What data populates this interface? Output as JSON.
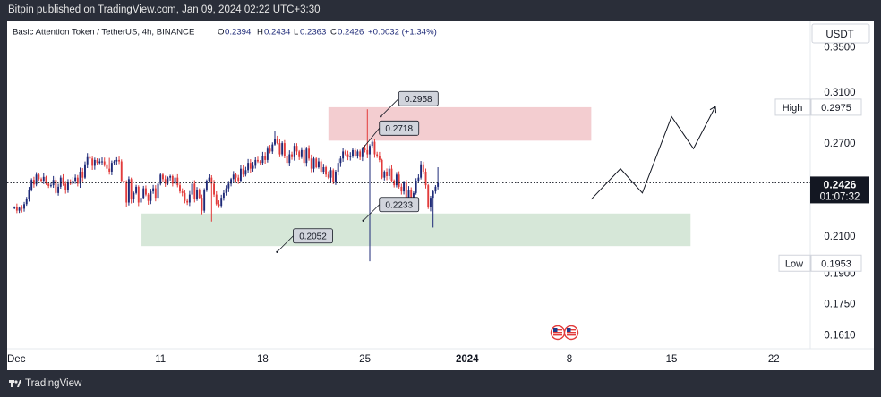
{
  "header": {
    "publisher_line": "Bitpin published on TradingView.com, Jan 09, 2024 02:22 UTC+3:30"
  },
  "legend": {
    "symbol": "Basic Attention Token / TetherUS, 4h, BINANCE",
    "open_label": "O",
    "open": "0.2394",
    "high_label": "H",
    "high": "0.2434",
    "low_label": "L",
    "low": "0.2363",
    "close_label": "C",
    "close": "0.2426",
    "change": "+0.0032 (+1.34%)"
  },
  "currency_button": "USDT",
  "footer": {
    "brand": "TradingView"
  },
  "colors": {
    "up": "#1e2a78",
    "down": "#e23b3b",
    "resistance_zone": "#f1c4c8",
    "support_zone": "#cfe3d1",
    "price_tag": "#131722"
  },
  "chart_data": {
    "type": "candlestick",
    "symbol": "Basic Attention Token / TetherUS",
    "interval": "4h",
    "exchange": "BINANCE",
    "quote": "USDT",
    "y_axis": {
      "scale": "log",
      "range": [
        0.155,
        0.375
      ],
      "ticks": [
        "0.3500",
        "0.3100",
        "0.2700",
        "0.2100",
        "0.1900",
        "0.1750",
        "0.1610"
      ]
    },
    "x_axis": {
      "labels": [
        "Dec",
        "11",
        "18",
        "25",
        "2024",
        "8",
        "15",
        "22"
      ],
      "label_days": [
        -0.5,
        10,
        17,
        24,
        31,
        38,
        45,
        52
      ],
      "range_days": [
        -0.5,
        54.5
      ]
    },
    "current_price": {
      "value": 0.2426,
      "label": "0.2426",
      "countdown": "01:07:32"
    },
    "high_marker": {
      "label": "High",
      "value": 0.2975,
      "text": "0.2975"
    },
    "low_marker": {
      "label": "Low",
      "value": 0.1953,
      "text": "0.1953"
    },
    "zones": [
      {
        "name": "resistance",
        "from_day": 21.5,
        "to_day": 39.5,
        "low": 0.2718,
        "high": 0.2975
      },
      {
        "name": "support",
        "from_day": 8.7,
        "to_day": 46.3,
        "low": 0.2045,
        "high": 0.2233
      }
    ],
    "annotations": [
      {
        "text": "0.2958",
        "value": 0.2958,
        "day": 25.7
      },
      {
        "text": "0.2718",
        "value": 0.2718,
        "day": 24.5
      },
      {
        "text": "0.2233",
        "value": 0.2233,
        "day": 24.5
      },
      {
        "text": "0.2052",
        "value": 0.2052,
        "day": 18.6
      }
    ],
    "projection": [
      {
        "day": 39.5,
        "value": 0.232
      },
      {
        "day": 41.5,
        "value": 0.252
      },
      {
        "day": 43.0,
        "value": 0.236
      },
      {
        "day": 45.0,
        "value": 0.29
      },
      {
        "day": 46.5,
        "value": 0.266
      },
      {
        "day": 48.0,
        "value": 0.298
      }
    ],
    "candles_per_day": 6,
    "start_day": 0,
    "closes": [
      0.227,
      0.225,
      0.2268,
      0.2262,
      0.229,
      0.232,
      0.238,
      0.2445,
      0.2415,
      0.248,
      0.245,
      0.244,
      0.2465,
      0.242,
      0.2405,
      0.241,
      0.2445,
      0.236,
      0.24,
      0.246,
      0.242,
      0.238,
      0.243,
      0.242,
      0.244,
      0.246,
      0.242,
      0.25,
      0.246,
      0.255,
      0.26,
      0.259,
      0.254,
      0.258,
      0.256,
      0.257,
      0.257,
      0.255,
      0.252,
      0.25,
      0.256,
      0.257,
      0.258,
      0.257,
      0.244,
      0.243,
      0.23,
      0.245,
      0.232,
      0.236,
      0.24,
      0.23,
      0.233,
      0.239,
      0.235,
      0.231,
      0.237,
      0.239,
      0.233,
      0.242,
      0.248,
      0.245,
      0.242,
      0.246,
      0.247,
      0.242,
      0.246,
      0.241,
      0.237,
      0.236,
      0.231,
      0.23,
      0.235,
      0.242,
      0.232,
      0.238,
      0.233,
      0.225,
      0.238,
      0.244,
      0.246,
      0.242,
      0.235,
      0.229,
      0.228,
      0.233,
      0.236,
      0.239,
      0.242,
      0.245,
      0.248,
      0.246,
      0.244,
      0.252,
      0.248,
      0.251,
      0.256,
      0.252,
      0.254,
      0.258,
      0.257,
      0.256,
      0.261,
      0.258,
      0.266,
      0.264,
      0.269,
      0.273,
      0.27,
      0.262,
      0.27,
      0.261,
      0.256,
      0.262,
      0.26,
      0.268,
      0.264,
      0.26,
      0.265,
      0.256,
      0.266,
      0.259,
      0.252,
      0.259,
      0.253,
      0.257,
      0.25,
      0.253,
      0.248,
      0.246,
      0.251,
      0.243,
      0.25,
      0.256,
      0.259,
      0.264,
      0.262,
      0.26,
      0.261,
      0.265,
      0.261,
      0.264,
      0.26,
      0.266,
      0.265,
      0.262,
      0.268,
      0.271,
      0.262,
      0.261,
      0.258,
      0.246,
      0.25,
      0.247,
      0.252,
      0.244,
      0.241,
      0.248,
      0.24,
      0.237,
      0.243,
      0.233,
      0.238,
      0.232,
      0.236,
      0.244,
      0.246,
      0.255,
      0.25,
      0.241,
      0.227,
      0.233,
      0.237,
      0.24,
      0.2426
    ],
    "wick_overrides": [
      {
        "index": 172,
        "low": 0.215
      },
      {
        "index": 174,
        "high": 0.253
      },
      {
        "index": 145,
        "high": 0.2958
      },
      {
        "index": 146,
        "low": 0.1963
      },
      {
        "index": 81,
        "low": 0.2185
      },
      {
        "index": 39,
        "high": 0.2595
      },
      {
        "index": 107,
        "high": 0.279
      }
    ]
  }
}
